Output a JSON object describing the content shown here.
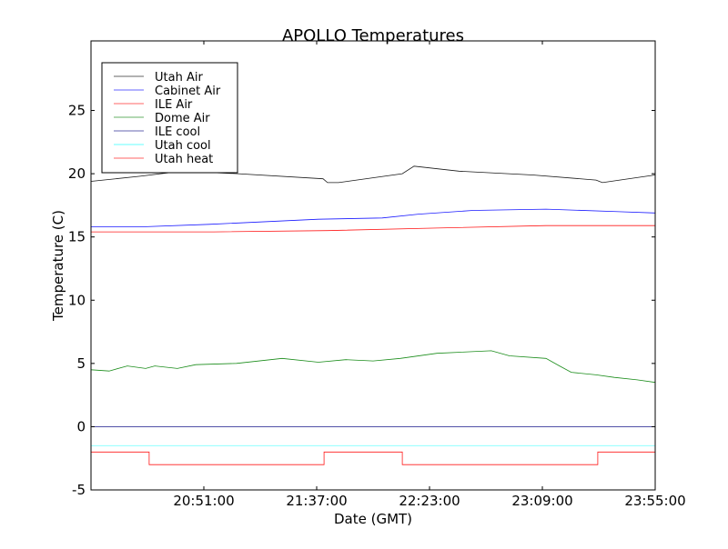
{
  "chart_data": {
    "type": "line",
    "title": "APOLLO Temperatures",
    "xlabel": "Date (GMT)",
    "ylabel": "Temperature (C)",
    "x_units": "minutes since 20:05:00",
    "xlim": [
      0,
      230
    ],
    "ylim": [
      -5,
      30.5
    ],
    "xticks": [
      {
        "value": 46,
        "label": "20:51:00"
      },
      {
        "value": 92,
        "label": "21:37:00"
      },
      {
        "value": 138,
        "label": "22:23:00"
      },
      {
        "value": 184,
        "label": "23:09:00"
      },
      {
        "value": 230,
        "label": "23:55:00"
      }
    ],
    "yticks": [
      {
        "value": -5,
        "label": "-5"
      },
      {
        "value": 0,
        "label": "0"
      },
      {
        "value": 5,
        "label": "5"
      },
      {
        "value": 10,
        "label": "10"
      },
      {
        "value": 15,
        "label": "15"
      },
      {
        "value": 20,
        "label": "20"
      },
      {
        "value": 25,
        "label": "25"
      }
    ],
    "legend_position": "top-left",
    "grid": false,
    "series": [
      {
        "name": "Utah Air",
        "color": "#000000",
        "x": [
          0,
          20,
          37,
          60,
          94.6,
          96.4,
          100.9,
          126.9,
          131.7,
          150,
          180,
          205.9,
          208.5,
          230
        ],
        "y": [
          19.4,
          19.8,
          20.2,
          20.0,
          19.6,
          19.3,
          19.3,
          20.0,
          20.6,
          20.2,
          19.9,
          19.5,
          19.3,
          19.9
        ]
      },
      {
        "name": "Cabinet Air",
        "color": "#0000ff",
        "x": [
          0,
          20,
          48.2,
          92.7,
          118.7,
          133.5,
          155.8,
          185.5,
          215.2,
          230
        ],
        "y": [
          15.8,
          15.8,
          16.0,
          16.4,
          16.5,
          16.8,
          17.1,
          17.2,
          17.0,
          16.9
        ]
      },
      {
        "name": "ILE Air",
        "color": "#ff0000",
        "x": [
          0,
          50,
          96.4,
          141,
          185.5,
          230
        ],
        "y": [
          15.4,
          15.4,
          15.5,
          15.7,
          15.9,
          15.9
        ]
      },
      {
        "name": "Dome Air",
        "color": "#008000",
        "x": [
          0,
          7.4,
          14.8,
          22.3,
          26,
          35.2,
          42.7,
          59.3,
          77.9,
          92.7,
          103.9,
          115,
          126.1,
          141,
          163.2,
          170.6,
          185.5,
          191,
          195.8,
          205.9,
          213.3,
          222.6,
          230
        ],
        "y": [
          4.5,
          4.4,
          4.8,
          4.6,
          4.8,
          4.6,
          4.9,
          5.0,
          5.4,
          5.1,
          5.3,
          5.2,
          5.4,
          5.8,
          6.0,
          5.6,
          5.4,
          4.8,
          4.3,
          4.1,
          3.9,
          3.7,
          3.5
        ]
      },
      {
        "name": "ILE cool",
        "color": "#000080",
        "x": [
          0,
          230
        ],
        "y": [
          0,
          0
        ]
      },
      {
        "name": "Utah cool",
        "color": "#00ffff",
        "x": [
          0,
          230
        ],
        "y": [
          -1.5,
          -1.5
        ]
      },
      {
        "name": "Utah heat",
        "color": "#ff0000",
        "x": [
          0,
          0,
          23.7,
          23.7,
          95.0,
          95.0,
          126.9,
          126.9,
          206.6,
          206.6,
          230
        ],
        "y": [
          -5,
          -2,
          -2,
          -3,
          -3,
          -2,
          -2,
          -3,
          -3,
          -2,
          -2
        ]
      }
    ]
  }
}
